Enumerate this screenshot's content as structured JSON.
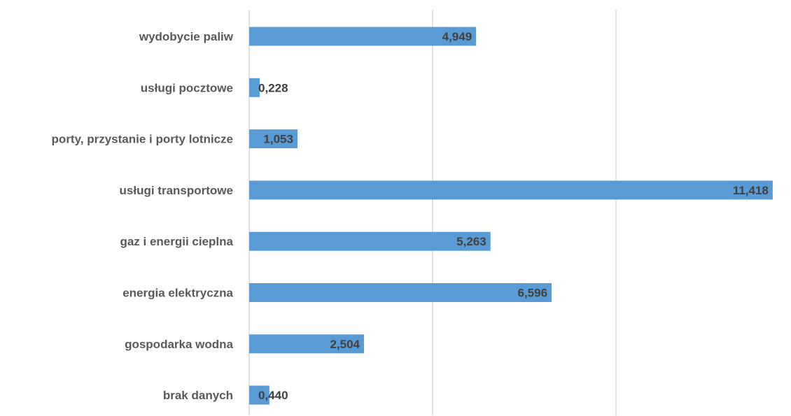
{
  "chart_data": {
    "type": "bar",
    "orientation": "horizontal",
    "categories": [
      "wydobycie paliw",
      "usługi pocztowe",
      "porty, przystanie i porty lotnicze",
      "usługi transportowe",
      "gaz i energii cieplna",
      "energia elektryczna",
      "gospodarka wodna",
      "brak danych"
    ],
    "values": [
      4.949,
      0.228,
      1.053,
      11.418,
      5.263,
      6.596,
      2.504,
      0.44
    ],
    "value_labels": [
      "4,949",
      "0,228",
      "1,053",
      "11,418",
      "5,263",
      "6,596",
      "2,504",
      "0,440"
    ],
    "xlim": [
      0,
      12
    ],
    "grid": true,
    "gridlines_at": [
      0,
      4,
      8
    ],
    "legend": "none",
    "title": "",
    "xlabel": "",
    "ylabel": "",
    "bar_color": "#5b9bd5"
  }
}
